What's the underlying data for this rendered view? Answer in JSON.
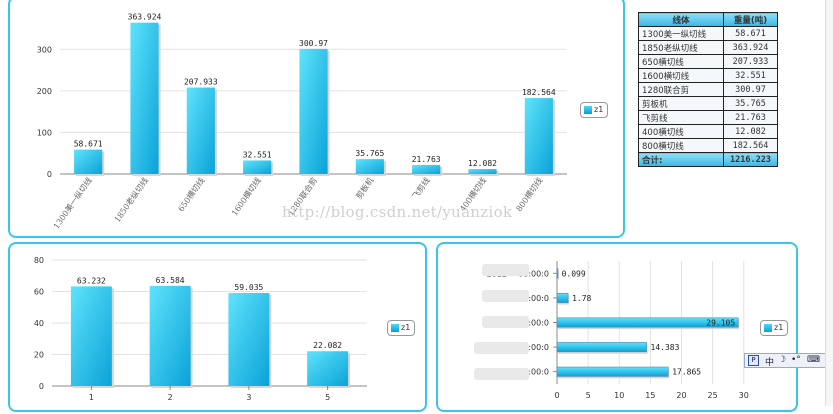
{
  "legend_label": "z1",
  "watermark": "http://blog.csdn.net/yuanziok",
  "ime": {
    "logo": "P",
    "mode": "中",
    "moon": "☽",
    "dots": "•°",
    "keyboard": "⌨"
  },
  "table": {
    "headers": [
      "线体",
      "重量(吨)"
    ],
    "rows": [
      {
        "name": "1300美一纵切线",
        "value": "58.671"
      },
      {
        "name": "1850老纵切线",
        "value": "363.924"
      },
      {
        "name": "650横切线",
        "value": "207.933"
      },
      {
        "name": "1600横切线",
        "value": "32.551"
      },
      {
        "name": "1280联合剪",
        "value": "300.97"
      },
      {
        "name": "剪板机",
        "value": "35.765"
      },
      {
        "name": "飞剪线",
        "value": "21.763"
      },
      {
        "name": "400横切线",
        "value": "12.082"
      },
      {
        "name": "800横切线",
        "value": "182.564"
      }
    ],
    "total_label": "合计:",
    "total_value": "1216.223"
  },
  "chart_data": [
    {
      "type": "bar",
      "categories": [
        "1300美一纵切线",
        "1850老纵切线",
        "650横切线",
        "1600横切线",
        "1280联合剪",
        "剪板机",
        "飞剪线",
        "400横切线",
        "800横切线"
      ],
      "values": [
        58.671,
        363.924,
        207.933,
        32.551,
        300.97,
        35.765,
        21.763,
        12.082,
        182.564
      ],
      "value_labels": [
        "58.671",
        "363.924",
        "207.933",
        "32.551",
        "300.97",
        "35.765",
        "21.763",
        "12.082",
        "182.564"
      ],
      "yticks": [
        0,
        100,
        200,
        300
      ],
      "ylim": [
        0,
        380
      ],
      "series": [
        {
          "name": "z1"
        }
      ],
      "grid": true,
      "legend": "right"
    },
    {
      "type": "bar",
      "categories": [
        "1",
        "2",
        "3",
        "5"
      ],
      "values": [
        63.232,
        63.584,
        59.035,
        22.082
      ],
      "value_labels": [
        "63.232",
        "63.584",
        "59.035",
        "22.082"
      ],
      "yticks": [
        0,
        20,
        40,
        60,
        80
      ],
      "ylim": [
        0,
        80
      ],
      "series": [
        {
          "name": "z1"
        }
      ],
      "grid": true,
      "legend": "right"
    },
    {
      "type": "bar",
      "orientation": "horizontal",
      "categories": [
        "2012 00:00:0",
        "2012 00:00:0",
        "2012 00:00:0",
        "2012 00:00:0",
        "2012 00:00:0"
      ],
      "category_prefixes": [
        "2012",
        "2012",
        "2012",
        "20",
        "20"
      ],
      "category_suffixes": [
        "00:00:0",
        "00:00:0",
        "00:00:0",
        "00:00:0",
        "00:00:0"
      ],
      "values": [
        0.099,
        1.78,
        29.105,
        14.383,
        17.865
      ],
      "value_labels": [
        "0.099",
        "1.78",
        "29.105",
        "14.383",
        "17.865"
      ],
      "xticks": [
        0,
        5,
        10,
        15,
        20,
        25,
        30
      ],
      "xlim": [
        0,
        31
      ],
      "series": [
        {
          "name": "z1"
        }
      ],
      "grid": true,
      "legend": "right"
    }
  ]
}
